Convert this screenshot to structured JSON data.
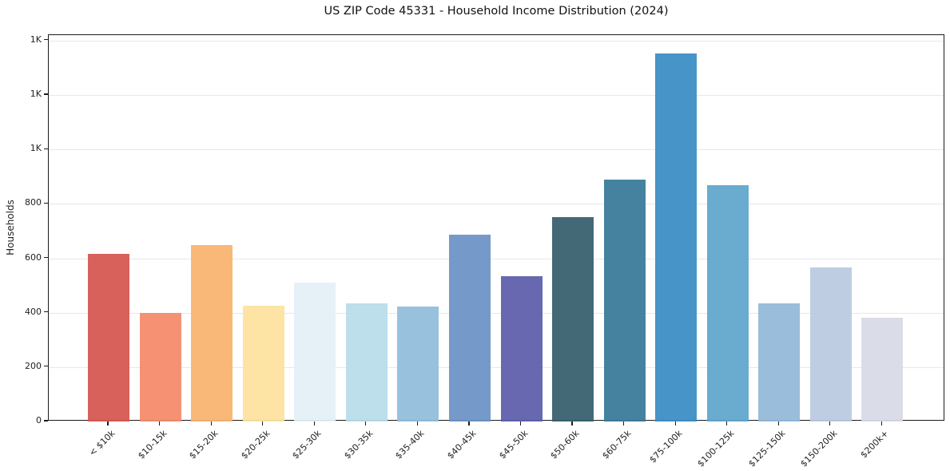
{
  "chart_data": {
    "type": "bar",
    "title": "US ZIP Code 45331 - Household Income Distribution (2024)",
    "xlabel": "",
    "ylabel": "Households",
    "ylim": [
      0,
      1420
    ],
    "grid": true,
    "legend": "none",
    "categories": [
      "< $10k",
      "$10-15k",
      "$15-20k",
      "$20-25k",
      "$25-30k",
      "$30-35k",
      "$35-40k",
      "$40-45k",
      "$45-50k",
      "$50-60k",
      "$60-75k",
      "$75-100k",
      "$100-125k",
      "$125-150k",
      "$150-200k",
      "$200k+"
    ],
    "values": [
      615,
      398,
      648,
      425,
      512,
      433,
      422,
      686,
      533,
      752,
      890,
      1352,
      870,
      433,
      565,
      382
    ],
    "bar_colors": [
      "#d65550",
      "#f58a68",
      "#fab36e",
      "#fde29d",
      "#e3f0f6",
      "#b8dbea",
      "#90bcdc",
      "#6b91c4",
      "#5b5daa",
      "#355e6d",
      "#377899",
      "#388cc4",
      "#5fa5cc",
      "#92b8d8",
      "#b9c9e0",
      "#d7d9e6"
    ],
    "ytick_values": [
      0,
      200,
      400,
      600,
      800,
      1000,
      1200,
      1400
    ],
    "ytick_labels": [
      "0",
      "200",
      "400",
      "600",
      "800",
      "1K",
      "1K",
      "1K"
    ]
  }
}
